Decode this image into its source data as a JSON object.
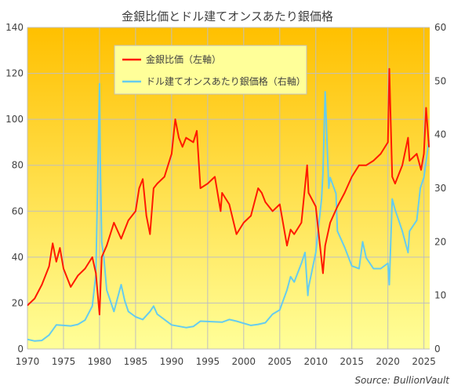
{
  "chart_data": {
    "type": "line",
    "title": "金銀比価とドル建てオンスあたり銀価格",
    "source": "Source: BullionVault",
    "x_ticks": [
      1970,
      1975,
      1980,
      1985,
      1990,
      1995,
      2000,
      2005,
      2010,
      2015,
      2020,
      2025
    ],
    "xlim": [
      1970,
      2025.8
    ],
    "y_left": {
      "ticks": [
        0,
        20,
        40,
        60,
        80,
        100,
        120,
        140
      ],
      "ylim": [
        0,
        140
      ]
    },
    "y_right": {
      "ticks": [
        0,
        10,
        20,
        30,
        40,
        50,
        60
      ],
      "ylim": [
        0,
        60
      ]
    },
    "legend_position": "top-left",
    "grid": true,
    "colors": {
      "ratio": "#ff1a00",
      "silver": "#66ccee",
      "bg_top": "#ffc000",
      "bg_bottom": "#ffff99",
      "grid": "#bfbfbf"
    },
    "series": [
      {
        "name": "金銀比価（左軸）",
        "axis": "left",
        "x": [
          1970.0,
          1971.0,
          1972.0,
          1973.0,
          1973.5,
          1974.0,
          1974.5,
          1975.0,
          1976.0,
          1977.0,
          1978.0,
          1979.0,
          1979.5,
          1980.0,
          1980.3,
          1981.0,
          1982.0,
          1983.0,
          1984.0,
          1985.0,
          1985.5,
          1986.0,
          1986.5,
          1987.0,
          1987.5,
          1988.0,
          1989.0,
          1990.0,
          1990.5,
          1991.0,
          1991.5,
          1992.0,
          1993.0,
          1993.5,
          1994.0,
          1995.0,
          1996.0,
          1996.8,
          1997.0,
          1998.0,
          1999.0,
          2000.0,
          2001.0,
          2002.0,
          2002.5,
          2003.0,
          2004.0,
          2005.0,
          2006.0,
          2006.5,
          2007.0,
          2008.0,
          2008.8,
          2009.0,
          2010.0,
          2011.0,
          2011.3,
          2012.0,
          2013.0,
          2014.0,
          2015.0,
          2016.0,
          2017.0,
          2018.0,
          2019.0,
          2020.0,
          2020.2,
          2020.6,
          2021.0,
          2022.0,
          2022.8,
          2023.0,
          2024.0,
          2024.6,
          2025.0,
          2025.3,
          2025.7
        ],
        "values": [
          19,
          22,
          28,
          36,
          46,
          38,
          44,
          35,
          27,
          32,
          35,
          40,
          33,
          15,
          40,
          45,
          55,
          48,
          56,
          60,
          70,
          74,
          58,
          50,
          70,
          72,
          75,
          85,
          100,
          92,
          88,
          92,
          90,
          95,
          70,
          72,
          75,
          60,
          68,
          63,
          50,
          55,
          58,
          70,
          68,
          64,
          60,
          63,
          45,
          52,
          50,
          55,
          80,
          68,
          62,
          33,
          45,
          55,
          62,
          68,
          75,
          80,
          80,
          82,
          85,
          90,
          122,
          75,
          72,
          80,
          92,
          82,
          85,
          78,
          85,
          105,
          88
        ]
      },
      {
        "name": "ドル建てオンスあたり銀価格（右軸）",
        "axis": "right",
        "x": [
          1970.0,
          1971.0,
          1972.0,
          1973.0,
          1974.0,
          1975.0,
          1976.0,
          1977.0,
          1978.0,
          1979.0,
          1979.5,
          1980.0,
          1980.1,
          1980.3,
          1980.6,
          1981.0,
          1982.0,
          1983.0,
          1983.5,
          1984.0,
          1985.0,
          1986.0,
          1987.0,
          1987.5,
          1988.0,
          1990.0,
          1992.0,
          1993.0,
          1994.0,
          1997.0,
          1998.0,
          1999.0,
          2001.0,
          2002.0,
          2003.0,
          2004.0,
          2005.0,
          2006.0,
          2006.5,
          2007.0,
          2008.0,
          2008.5,
          2008.9,
          2009.0,
          2010.0,
          2010.8,
          2011.0,
          2011.3,
          2011.8,
          2012.0,
          2012.8,
          2013.0,
          2014.0,
          2015.0,
          2016.0,
          2016.5,
          2017.0,
          2018.0,
          2019.0,
          2020.0,
          2020.2,
          2020.6,
          2021.0,
          2022.0,
          2022.8,
          2023.0,
          2024.0,
          2024.5,
          2025.0,
          2025.7
        ],
        "values": [
          1.8,
          1.5,
          1.6,
          2.6,
          4.5,
          4.4,
          4.3,
          4.6,
          5.4,
          8.0,
          14.0,
          49.5,
          35,
          20,
          17,
          11,
          7,
          12,
          9,
          7,
          6,
          5.5,
          7,
          8,
          6.5,
          4.5,
          4.0,
          4.2,
          5.2,
          5.0,
          5.5,
          5.2,
          4.4,
          4.6,
          4.9,
          6.5,
          7.3,
          11,
          13.5,
          12.5,
          16,
          18,
          10,
          11.5,
          18,
          28,
          33,
          48,
          30,
          32,
          29,
          22,
          19,
          15.5,
          15,
          20,
          17,
          15,
          15,
          16,
          12,
          28,
          26,
          22,
          18,
          22,
          24,
          30,
          32,
          39
        ]
      }
    ]
  }
}
